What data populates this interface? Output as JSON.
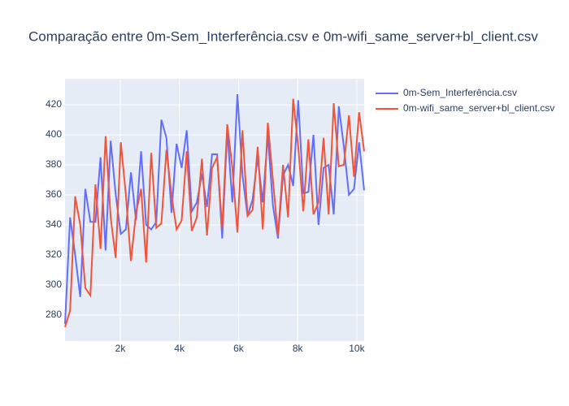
{
  "chart_data": {
    "type": "line",
    "title": "Comparação entre 0m-Sem_Interferência.csv e 0m-wifi_same_server+bl_client.csv",
    "x": [
      130,
      302,
      473,
      645,
      816,
      988,
      1159,
      1331,
      1502,
      1674,
      1845,
      2017,
      2188,
      2360,
      2531,
      2703,
      2874,
      3046,
      3217,
      3389,
      3560,
      3732,
      3903,
      4075,
      4246,
      4418,
      4589,
      4761,
      4932,
      5104,
      5275,
      5447,
      5618,
      5790,
      5961,
      6133,
      6304,
      6476,
      6647,
      6819,
      6990,
      7162,
      7333,
      7505,
      7676,
      7848,
      8019,
      8191,
      8362,
      8534,
      8705,
      8877,
      9048,
      9220,
      9391,
      9563,
      9734,
      9906,
      10077,
      10249
    ],
    "series": [
      {
        "name": "0m-Sem_Interferência.csv",
        "color": "#636efa",
        "values": [
          274,
          345,
          320,
          292,
          364,
          342,
          342,
          385,
          323,
          396,
          360,
          334,
          337,
          375,
          343,
          389,
          340,
          337,
          342,
          410,
          398,
          348,
          394,
          378,
          403,
          349,
          355,
          374,
          352,
          387,
          387,
          331,
          403,
          355,
          427,
          373,
          346,
          357,
          385,
          355,
          400,
          353,
          331,
          373,
          380,
          366,
          423,
          361,
          362,
          400,
          340,
          378,
          380,
          347,
          419,
          392,
          360,
          364,
          395,
          363
        ]
      },
      {
        "name": "0m-wifi_same_server+bl_client.csv",
        "color": "#EF553B",
        "values": [
          272,
          283,
          359,
          340,
          298,
          293,
          367,
          324,
          399,
          345,
          318,
          395,
          360,
          316,
          348,
          364,
          315,
          388,
          338,
          341,
          390,
          360,
          337,
          343,
          389,
          336,
          345,
          384,
          333,
          378,
          385,
          338,
          407,
          378,
          335,
          403,
          346,
          350,
          392,
          337,
          408,
          370,
          333,
          380,
          345,
          424,
          392,
          349,
          397,
          347,
          355,
          398,
          347,
          421,
          379,
          380,
          413,
          372,
          415,
          389
        ]
      }
    ],
    "xlim": [
      130,
      10249
    ],
    "xticks": [
      {
        "value": 2000,
        "label": "2k"
      },
      {
        "value": 4000,
        "label": "4k"
      },
      {
        "value": 6000,
        "label": "6k"
      },
      {
        "value": 8000,
        "label": "8k"
      },
      {
        "value": 10000,
        "label": "10k"
      }
    ],
    "ylim": [
      262.7,
      437.3
    ],
    "yticks": [
      280,
      300,
      320,
      340,
      360,
      380,
      400,
      420
    ],
    "grid": true
  }
}
